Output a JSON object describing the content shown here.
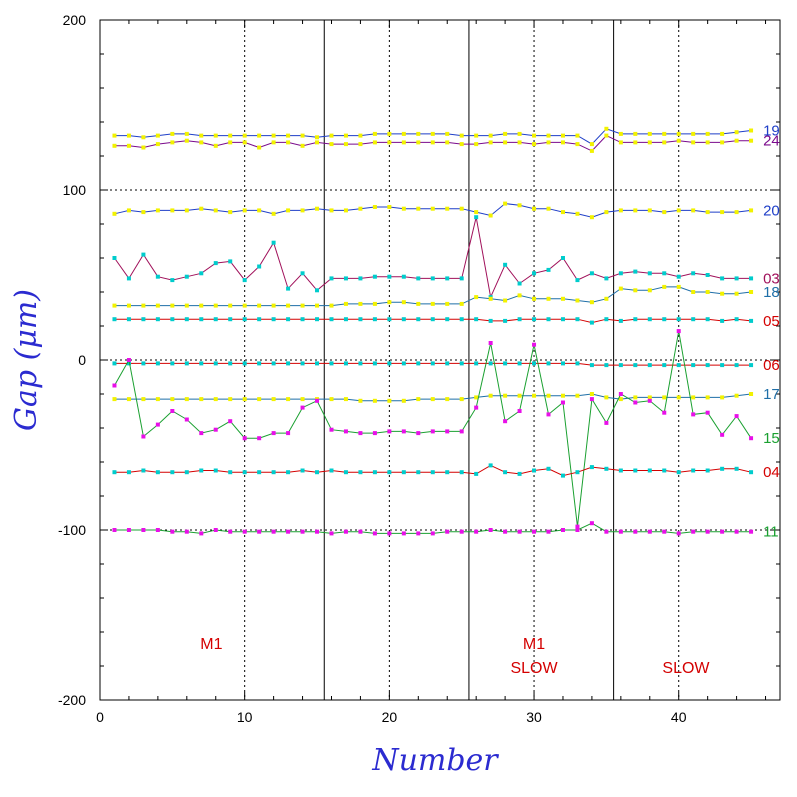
{
  "chart_data": {
    "type": "line",
    "xlabel": "Number",
    "ylabel": "Gap (μm)",
    "xlim": [
      0,
      47
    ],
    "ylim": [
      -200,
      200
    ],
    "x_ticks": [
      0,
      10,
      20,
      30,
      40
    ],
    "y_ticks": [
      -200,
      -100,
      0,
      100,
      200
    ],
    "dotted_gridlines_x": [
      10,
      20,
      30,
      40
    ],
    "dotted_gridlines_y": [
      -100,
      0,
      100
    ],
    "solid_dividers_x": [
      15.5,
      25.5,
      35.5
    ],
    "annotations": [
      {
        "text": "M1",
        "x": 7.7,
        "y": -170
      },
      {
        "text": "M1",
        "x": 30.0,
        "y": -170
      },
      {
        "text": "SLOW",
        "x": 30.0,
        "y": -184
      },
      {
        "text": "SLOW",
        "x": 40.5,
        "y": -184
      }
    ],
    "series": [
      {
        "name": "19",
        "color": "#1f3fc8",
        "marker": "#f2f200",
        "values": [
          132,
          132,
          131,
          132,
          133,
          133,
          132,
          132,
          132,
          132,
          132,
          132,
          132,
          132,
          131,
          132,
          132,
          132,
          133,
          133,
          133,
          133,
          133,
          133,
          132,
          132,
          132,
          133,
          133,
          132,
          132,
          132,
          132,
          127,
          136,
          133,
          133,
          133,
          133,
          133,
          133,
          133,
          133,
          134,
          135
        ]
      },
      {
        "name": "24",
        "color": "#7a0a8c",
        "marker": "#f2f200",
        "values": [
          126,
          126,
          125,
          127,
          128,
          129,
          128,
          126,
          128,
          128,
          125,
          128,
          128,
          126,
          128,
          127,
          127,
          127,
          128,
          128,
          128,
          128,
          128,
          128,
          127,
          127,
          128,
          128,
          128,
          127,
          128,
          128,
          127,
          123,
          132,
          128,
          128,
          128,
          128,
          129,
          128,
          128,
          128,
          129,
          129
        ]
      },
      {
        "name": "20",
        "color": "#1f3fc8",
        "marker": "#f2f200",
        "values": [
          86,
          88,
          87,
          88,
          88,
          88,
          89,
          88,
          87,
          88,
          88,
          86,
          88,
          88,
          89,
          88,
          88,
          89,
          90,
          90,
          89,
          89,
          89,
          89,
          89,
          87,
          85,
          92,
          91,
          89,
          89,
          87,
          86,
          84,
          87,
          88,
          88,
          88,
          87,
          88,
          88,
          87,
          87,
          87,
          88
        ]
      },
      {
        "name": "03",
        "color": "#a0105a",
        "marker": "#00cccc",
        "values": [
          60,
          48,
          62,
          49,
          47,
          49,
          51,
          57,
          58,
          47,
          55,
          69,
          42,
          51,
          41,
          48,
          48,
          48,
          49,
          49,
          49,
          48,
          48,
          48,
          48,
          84,
          37,
          56,
          45,
          51,
          53,
          60,
          47,
          51,
          48,
          51,
          52,
          51,
          51,
          49,
          51,
          50,
          48,
          48,
          48
        ]
      },
      {
        "name": "18",
        "color": "#1f6fa8",
        "marker": "#f2f200",
        "values": [
          32,
          32,
          32,
          32,
          32,
          32,
          32,
          32,
          32,
          32,
          32,
          32,
          32,
          32,
          32,
          32,
          33,
          33,
          33,
          34,
          34,
          33,
          33,
          33,
          33,
          37,
          36,
          35,
          38,
          36,
          36,
          36,
          35,
          34,
          36,
          42,
          41,
          41,
          43,
          43,
          40,
          40,
          39,
          39,
          40
        ]
      },
      {
        "name": "05",
        "color": "#d40000",
        "marker": "#00cccc",
        "values": [
          24,
          24,
          24,
          24,
          24,
          24,
          24,
          24,
          24,
          24,
          24,
          24,
          24,
          24,
          24,
          24,
          24,
          24,
          24,
          24,
          24,
          24,
          24,
          24,
          24,
          24,
          23,
          23,
          24,
          24,
          24,
          24,
          24,
          22,
          24,
          23,
          24,
          24,
          24,
          24,
          24,
          24,
          23,
          24,
          23
        ]
      },
      {
        "name": "06",
        "color": "#d40000",
        "marker": "#00cccc",
        "values": [
          -2,
          -2,
          -2,
          -2,
          -2,
          -2,
          -2,
          -2,
          -2,
          -2,
          -2,
          -2,
          -2,
          -2,
          -2,
          -2,
          -2,
          -2,
          -2,
          -2,
          -2,
          -2,
          -2,
          -2,
          -2,
          -2,
          -2,
          -2,
          -2,
          -2,
          -2,
          -2,
          -2,
          -3,
          -3,
          -3,
          -3,
          -3,
          -3,
          -3,
          -3,
          -3,
          -3,
          -3,
          -3
        ]
      },
      {
        "name": "17",
        "color": "#1f6fa8",
        "marker": "#f2f200",
        "values": [
          -23,
          -23,
          -23,
          -23,
          -23,
          -23,
          -23,
          -23,
          -23,
          -23,
          -23,
          -23,
          -23,
          -23,
          -23,
          -23,
          -23,
          -24,
          -24,
          -24,
          -24,
          -23,
          -23,
          -23,
          -23,
          -22,
          -21,
          -21,
          -21,
          -21,
          -21,
          -21,
          -21,
          -20,
          -22,
          -23,
          -22,
          -22,
          -22,
          -22,
          -22,
          -22,
          -22,
          -21,
          -20
        ]
      },
      {
        "name": "15",
        "color": "#1aa030",
        "marker": "#e810e8",
        "values": [
          -15,
          0,
          -45,
          -38,
          -30,
          -35,
          -43,
          -41,
          -36,
          -46,
          -46,
          -43,
          -43,
          -28,
          -24,
          -41,
          -42,
          -43,
          -43,
          -42,
          -42,
          -43,
          -42,
          -42,
          -42,
          -28,
          10,
          -36,
          -30,
          9,
          -32,
          -25,
          -98,
          -23,
          -37,
          -20,
          -25,
          -24,
          -31,
          17,
          -32,
          -31,
          -44,
          -33,
          -46
        ]
      },
      {
        "name": "04",
        "color": "#d40000",
        "marker": "#00cccc",
        "values": [
          -66,
          -66,
          -65,
          -66,
          -66,
          -66,
          -65,
          -65,
          -66,
          -66,
          -66,
          -66,
          -66,
          -65,
          -66,
          -65,
          -66,
          -66,
          -66,
          -66,
          -66,
          -66,
          -66,
          -66,
          -66,
          -67,
          -62,
          -66,
          -67,
          -65,
          -64,
          -68,
          -66,
          -63,
          -64,
          -65,
          -65,
          -65,
          -65,
          -66,
          -65,
          -65,
          -64,
          -64,
          -66
        ]
      },
      {
        "name": "11",
        "color": "#1aa030",
        "marker": "#e810e8",
        "values": [
          -100,
          -100,
          -100,
          -100,
          -101,
          -101,
          -102,
          -100,
          -101,
          -101,
          -101,
          -101,
          -101,
          -101,
          -101,
          -102,
          -101,
          -101,
          -102,
          -102,
          -102,
          -102,
          -102,
          -101,
          -101,
          -101,
          -100,
          -101,
          -101,
          -101,
          -101,
          -100,
          -100,
          -96,
          -101,
          -101,
          -101,
          -101,
          -101,
          -102,
          -101,
          -101,
          -101,
          -101,
          -101
        ]
      }
    ]
  }
}
